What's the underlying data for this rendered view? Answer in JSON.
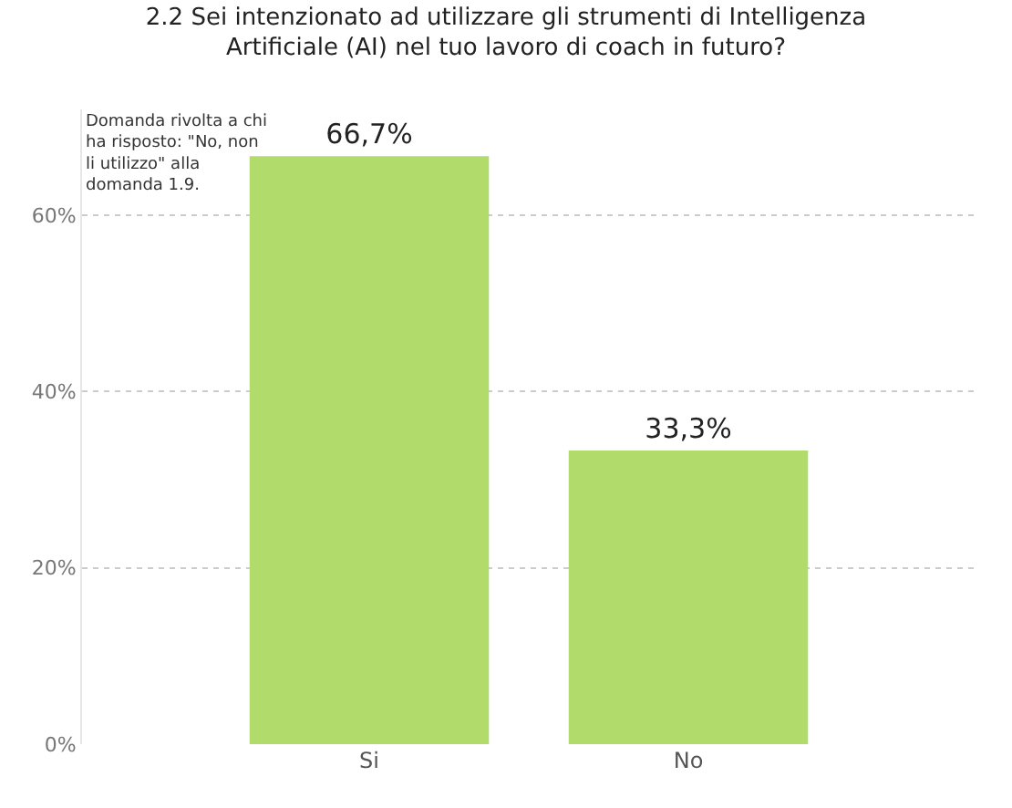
{
  "chart_data": {
    "type": "bar",
    "title": "2.2 Sei intenzionato ad utilizzare gli strumenti di Intelligenza Artificiale (AI) nel tuo lavoro di coach in futuro?",
    "categories": [
      "Si",
      "No"
    ],
    "values": [
      66.7,
      33.3
    ],
    "value_labels": [
      "66,7%",
      "33,3%"
    ],
    "color": "#b1dc6b",
    "ylim": [
      0,
      72
    ],
    "yticks": [
      {
        "value": 0,
        "label": "0%"
      },
      {
        "value": 20,
        "label": "20%"
      },
      {
        "value": 40,
        "label": "40%"
      },
      {
        "value": 60,
        "label": "60%"
      }
    ],
    "grid": "y",
    "annotations": [
      "Domanda rivolta a chi ha risposto: \"No, non li utilizzo\" alla domanda 1.9."
    ]
  }
}
